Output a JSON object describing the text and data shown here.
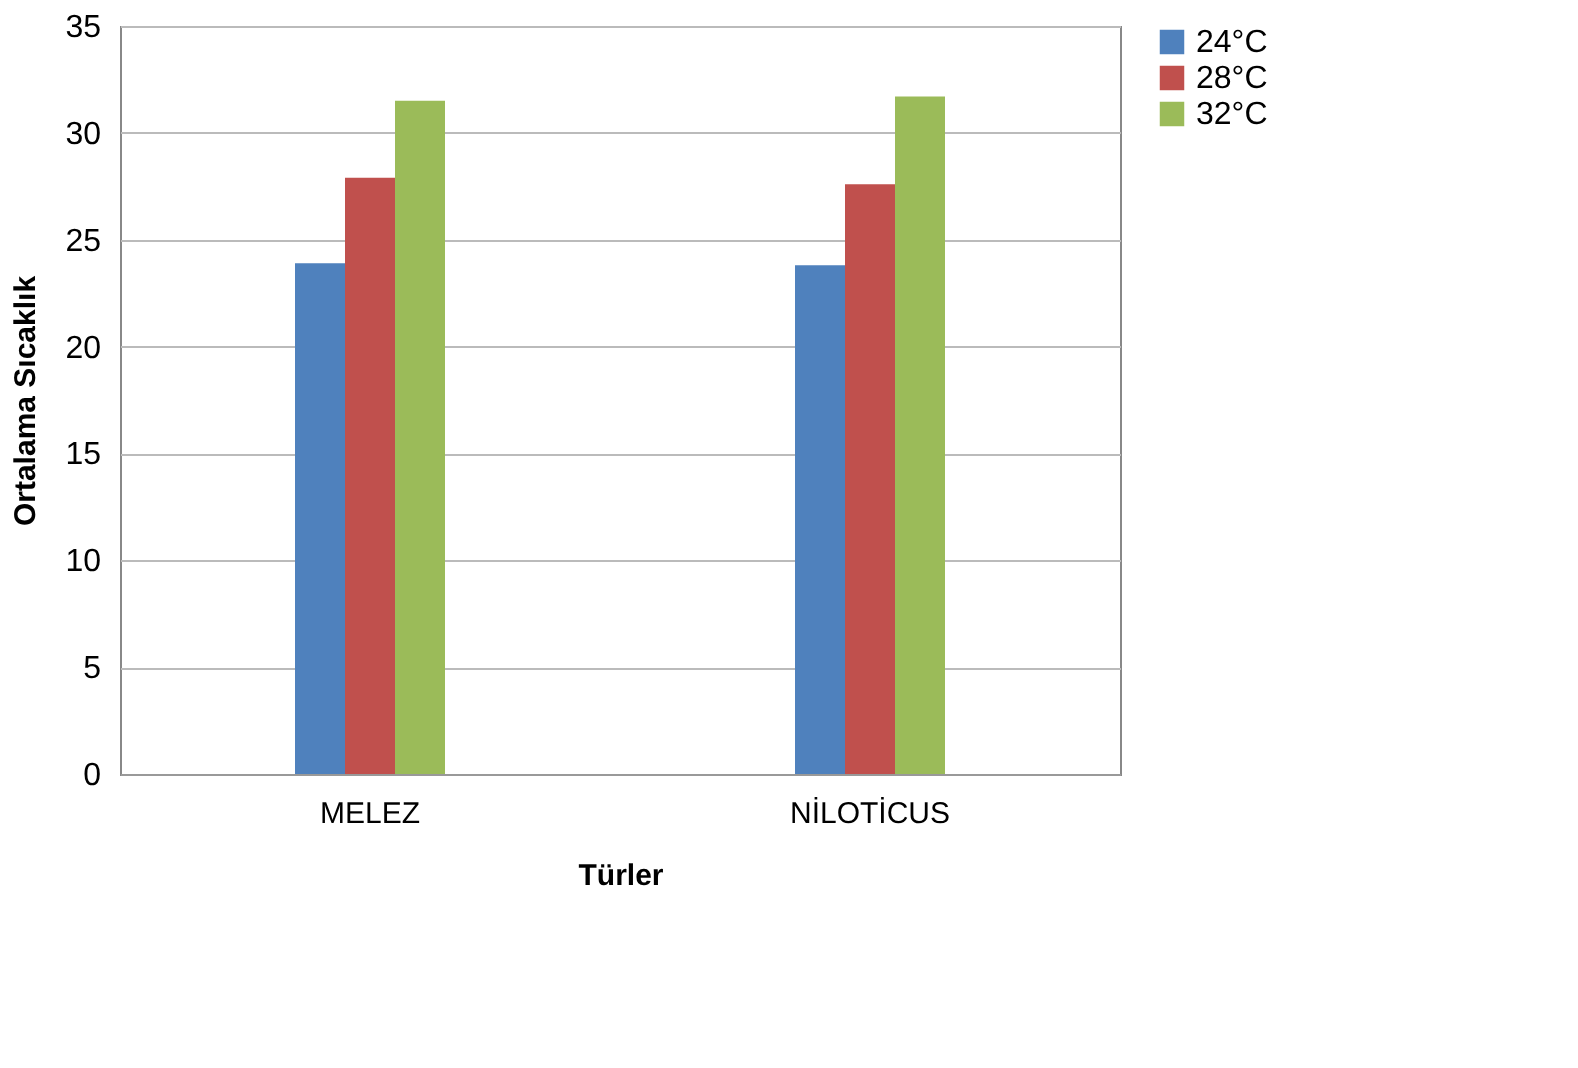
{
  "chart_data": {
    "type": "bar",
    "xlabel": "Türler",
    "ylabel": "Ortalama Sıcaklık",
    "categories": [
      "MELEZ",
      "NİLOTİCUS"
    ],
    "series": [
      {
        "name": "24°C",
        "color": "#4f81bd",
        "values": [
          23.9,
          23.8
        ]
      },
      {
        "name": "28°C",
        "color": "#c0504d",
        "values": [
          27.9,
          27.6
        ]
      },
      {
        "name": "32°C",
        "color": "#9bbb59",
        "values": [
          31.5,
          31.7
        ]
      }
    ],
    "ylim": [
      0,
      35
    ],
    "yticks": [
      0,
      5,
      10,
      15,
      20,
      25,
      30,
      35
    ],
    "grid": "y",
    "legend": "right"
  }
}
